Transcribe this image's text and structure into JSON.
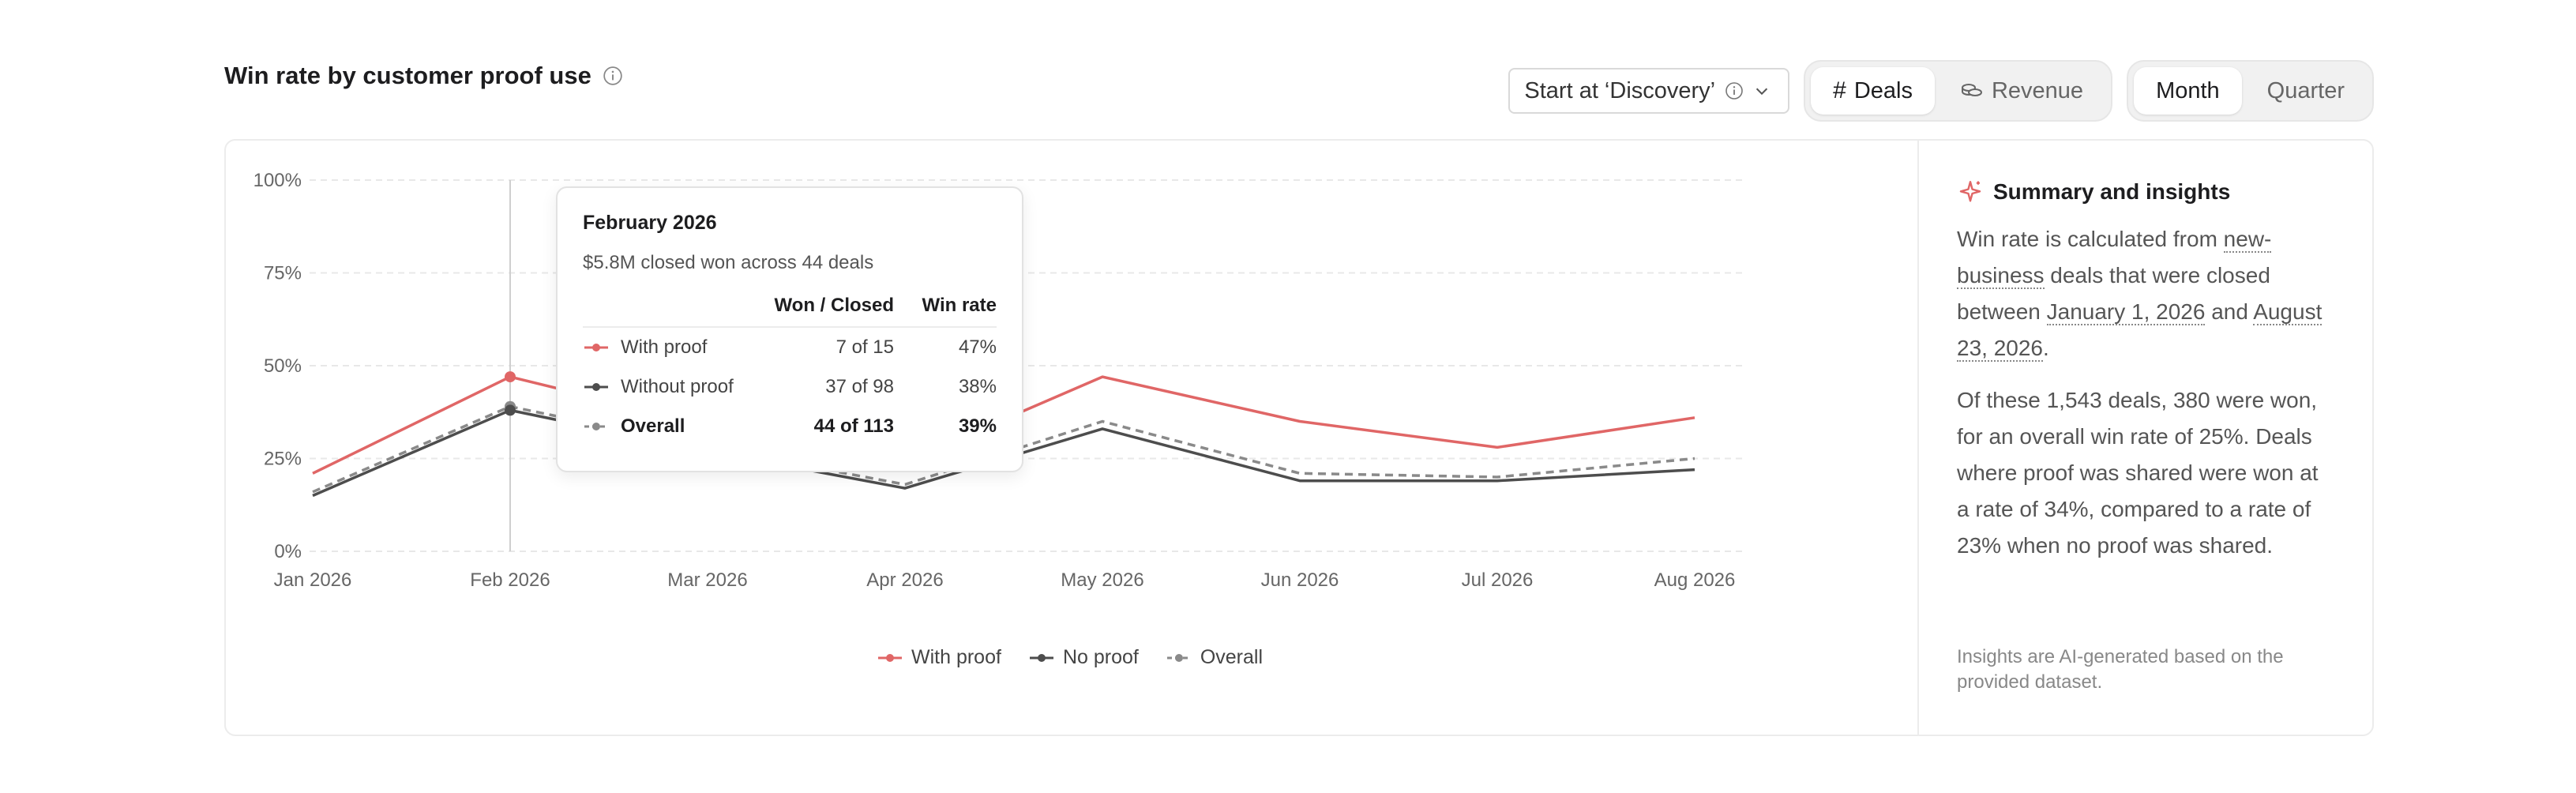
{
  "header": {
    "title": "Win rate by customer proof use",
    "stage_dropdown": "Start at ‘Discovery’",
    "metric_toggle": [
      "Deals",
      "Revenue"
    ],
    "period_toggle": [
      "Month",
      "Quarter"
    ]
  },
  "colors": {
    "with_proof": "#e06666",
    "no_proof": "#4d4d4d",
    "overall": "#8a8a8a"
  },
  "chart_data": {
    "type": "line",
    "x": [
      "Jan 2026",
      "Feb 2026",
      "Mar 2026",
      "Apr 2026",
      "May 2026",
      "Jun 2026",
      "Jul 2026",
      "Aug 2026"
    ],
    "y_ticks": [
      "0%",
      "25%",
      "50%",
      "75%",
      "100%"
    ],
    "ylim": [
      0,
      100
    ],
    "grid": true,
    "legend_position": "bottom",
    "series": [
      {
        "name": "With proof",
        "values": [
          21,
          47,
          34,
          24,
          47,
          35,
          28,
          36
        ],
        "style": "solid"
      },
      {
        "name": "No proof",
        "values": [
          15,
          38,
          27,
          17,
          33,
          19,
          19,
          22
        ],
        "style": "solid"
      },
      {
        "name": "Overall",
        "values": [
          16,
          39,
          28,
          18,
          35,
          21,
          20,
          25
        ],
        "style": "dashed"
      }
    ]
  },
  "tooltip": {
    "title": "February 2026",
    "subtitle": "$5.8M closed won across 44 deals",
    "col_won": "Won / Closed",
    "col_rate": "Win rate",
    "rows": [
      {
        "label": "With proof",
        "won": "7 of 15",
        "rate": "47%"
      },
      {
        "label": "Without proof",
        "won": "37 of 98",
        "rate": "38%"
      },
      {
        "label": "Overall",
        "won": "44 of 113",
        "rate": "39%"
      }
    ]
  },
  "insights": {
    "title": "Summary and insights",
    "p1_a": "Win rate is calculated from ",
    "p1_link1": "new-business",
    "p1_b": " deals that were closed between ",
    "p1_link2": "January 1, 2026",
    "p1_c": " and ",
    "p1_link3": "August 23, 2026",
    "p1_d": ".",
    "p2": "Of these 1,543 deals, 380 were won, for an overall win rate of 25%. Deals where proof was shared were won at a rate of 34%, compared to a rate of 23% when no proof was shared.",
    "footnote": "Insights are AI-generated based on the provided dataset."
  }
}
